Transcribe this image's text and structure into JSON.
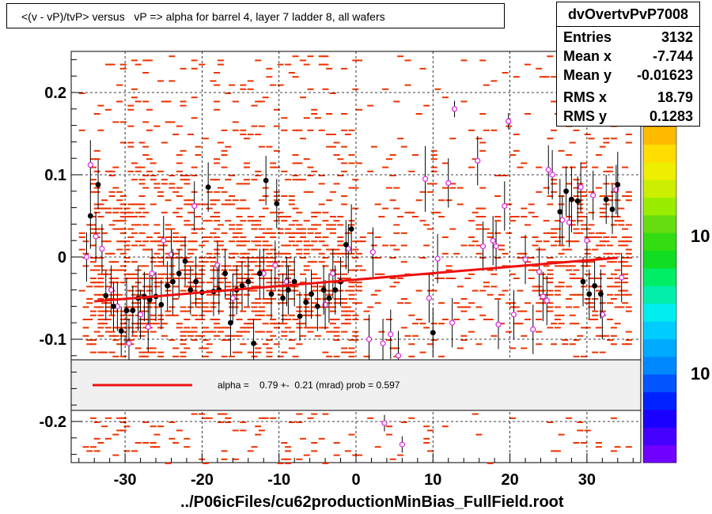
{
  "title": "<(v - vP)/tvP> versus   vP => alpha for barrel 4, layer 7 ladder 8, all wafers",
  "xlabel": "../P06icFiles/cu62productionMinBias_FullField.root",
  "stats": {
    "name": "dvOvertvPvP7008",
    "rows": [
      {
        "key": "Entries",
        "value": "3132"
      },
      {
        "key": "Mean x",
        "value": "-7.744"
      },
      {
        "key": "Mean y",
        "value": "-0.01623"
      },
      {
        "key": "RMS x",
        "value": "18.79"
      },
      {
        "key": "RMS y",
        "value": "0.1283"
      }
    ]
  },
  "fit_legend": "alpha =    0.79 +-  0.21 (mrad) prob = 0.597",
  "colors": {
    "fit_line": "#ee1111",
    "hist_cells": "#ee3300",
    "profile_points": "#000000",
    "open_points": "#dd22dd",
    "legend_bg": "#f0f0f0"
  },
  "chart_data": {
    "type": "scatter",
    "xlim": [
      -37,
      37
    ],
    "ylim": [
      -0.25,
      0.25
    ],
    "x_ticks": [
      -30,
      -20,
      -10,
      0,
      10,
      20,
      30
    ],
    "y_ticks": [
      -0.2,
      -0.1,
      0,
      0.1,
      0.2
    ],
    "x_tick_labels": [
      "-30",
      "-20",
      "-10",
      "0",
      "10",
      "20",
      "30"
    ],
    "y_tick_labels": [
      "-0.2",
      "-0.1",
      "0",
      "0.1",
      "0.2"
    ],
    "grid": true,
    "colorbar_labels": [
      "10",
      "10"
    ],
    "fit_line": {
      "x": [
        -34,
        34
      ],
      "y": [
        -0.054,
        -0.001
      ]
    },
    "profile": [
      {
        "x": -34.5,
        "y": 0.05,
        "err": 0.04
      },
      {
        "x": -33.5,
        "y": 0.088,
        "err": 0.03
      },
      {
        "x": -32.5,
        "y": -0.047,
        "err": 0.03
      },
      {
        "x": -31.5,
        "y": -0.06,
        "err": 0.03
      },
      {
        "x": -30.5,
        "y": -0.09,
        "err": 0.03
      },
      {
        "x": -29.8,
        "y": -0.065,
        "err": 0.04
      },
      {
        "x": -29,
        "y": -0.065,
        "err": 0.03
      },
      {
        "x": -28.3,
        "y": -0.05,
        "err": 0.04
      },
      {
        "x": -27.5,
        "y": -0.048,
        "err": 0.03
      },
      {
        "x": -26.8,
        "y": -0.052,
        "err": 0.03
      },
      {
        "x": -26,
        "y": -0.048,
        "err": 0.03
      },
      {
        "x": -25.3,
        "y": -0.058,
        "err": 0.03
      },
      {
        "x": -24.5,
        "y": -0.035,
        "err": 0.03
      },
      {
        "x": -23.8,
        "y": -0.03,
        "err": 0.04
      },
      {
        "x": -23,
        "y": -0.02,
        "err": 0.03
      },
      {
        "x": -22.2,
        "y": -0.005,
        "err": 0.03
      },
      {
        "x": -21.5,
        "y": -0.04,
        "err": 0.03
      },
      {
        "x": -20.8,
        "y": -0.03,
        "err": 0.03
      },
      {
        "x": -20,
        "y": -0.043,
        "err": 0.03
      },
      {
        "x": -19.2,
        "y": 0.085,
        "err": 0.03
      },
      {
        "x": -18.5,
        "y": -0.042,
        "err": 0.03
      },
      {
        "x": -17.8,
        "y": -0.04,
        "err": 0.03
      },
      {
        "x": -17,
        "y": -0.02,
        "err": 0.03
      },
      {
        "x": -16.3,
        "y": -0.08,
        "err": 0.04
      },
      {
        "x": -15.5,
        "y": -0.04,
        "err": 0.03
      },
      {
        "x": -14.8,
        "y": -0.035,
        "err": 0.03
      },
      {
        "x": -14,
        "y": -0.03,
        "err": 0.03
      },
      {
        "x": -13.3,
        "y": -0.105,
        "err": 0.03
      },
      {
        "x": -12.5,
        "y": -0.02,
        "err": 0.03
      },
      {
        "x": -11.7,
        "y": 0.093,
        "err": 0.03
      },
      {
        "x": -11,
        "y": -0.045,
        "err": 0.03
      },
      {
        "x": -10.3,
        "y": 0.065,
        "err": 0.03
      },
      {
        "x": -9.5,
        "y": -0.05,
        "err": 0.03
      },
      {
        "x": -8.8,
        "y": -0.04,
        "err": 0.03
      },
      {
        "x": -8,
        "y": -0.03,
        "err": 0.03
      },
      {
        "x": -7.3,
        "y": -0.072,
        "err": 0.03
      },
      {
        "x": -6.5,
        "y": -0.055,
        "err": 0.03
      },
      {
        "x": -5.8,
        "y": -0.045,
        "err": 0.03
      },
      {
        "x": -5,
        "y": -0.06,
        "err": 0.03
      },
      {
        "x": -4.2,
        "y": -0.04,
        "err": 0.03
      },
      {
        "x": -3.5,
        "y": -0.05,
        "err": 0.03
      },
      {
        "x": -2.7,
        "y": -0.04,
        "err": 0.03
      },
      {
        "x": -2,
        "y": -0.03,
        "err": 0.03
      },
      {
        "x": -1.3,
        "y": 0.015,
        "err": 0.03
      },
      {
        "x": -0.6,
        "y": 0.034,
        "err": 0.03
      },
      {
        "x": 10,
        "y": -0.092,
        "err": 0.03
      },
      {
        "x": 26.5,
        "y": 0.055,
        "err": 0.04
      },
      {
        "x": 27.3,
        "y": 0.08,
        "err": 0.03
      },
      {
        "x": 28,
        "y": 0.07,
        "err": 0.04
      },
      {
        "x": 28.8,
        "y": 0.068,
        "err": 0.03
      },
      {
        "x": 29.5,
        "y": -0.03,
        "err": 0.03
      },
      {
        "x": 30.3,
        "y": -0.045,
        "err": 0.03
      },
      {
        "x": 31,
        "y": -0.035,
        "err": 0.03
      },
      {
        "x": 31.8,
        "y": -0.045,
        "err": 0.03
      },
      {
        "x": 32.5,
        "y": 0.07,
        "err": 0.03
      },
      {
        "x": 33.3,
        "y": 0.058,
        "err": 0.03
      },
      {
        "x": 34,
        "y": 0.088,
        "err": 0.04
      }
    ],
    "open_points": [
      {
        "x": -35,
        "y": 0,
        "err": 0.03
      },
      {
        "x": -34.5,
        "y": 0.112,
        "err": 0.03
      },
      {
        "x": -33.8,
        "y": 0.025,
        "err": 0.03
      },
      {
        "x": -33,
        "y": 0.01,
        "err": 0.03
      },
      {
        "x": -31.8,
        "y": -0.04,
        "err": 0.03
      },
      {
        "x": -31,
        "y": -0.06,
        "err": 0.03
      },
      {
        "x": -29.5,
        "y": -0.105,
        "err": 0.03
      },
      {
        "x": -28,
        "y": -0.07,
        "err": 0.03
      },
      {
        "x": -27,
        "y": -0.085,
        "err": 0.03
      },
      {
        "x": -26.5,
        "y": -0.02,
        "err": 0.03
      },
      {
        "x": -25,
        "y": 0.02,
        "err": 0.03
      },
      {
        "x": -24,
        "y": 0.003,
        "err": 0.03
      },
      {
        "x": -21,
        "y": 0.062,
        "err": 0.03
      },
      {
        "x": -18,
        "y": -0.01,
        "err": 0.03
      },
      {
        "x": -16,
        "y": -0.05,
        "err": 0.03
      },
      {
        "x": -12,
        "y": -0.02,
        "err": 0.03
      },
      {
        "x": -10.5,
        "y": -0.01,
        "err": 0.03
      },
      {
        "x": -9,
        "y": -0.03,
        "err": 0.03
      },
      {
        "x": -4,
        "y": -0.058,
        "err": 0.03
      },
      {
        "x": -3,
        "y": -0.02,
        "err": 0.03
      },
      {
        "x": -1,
        "y": 0.01,
        "err": 0.03
      },
      {
        "x": 1.7,
        "y": -0.1,
        "err": 0.03
      },
      {
        "x": 2.2,
        "y": 0.006,
        "err": 0.03
      },
      {
        "x": 3.5,
        "y": -0.105,
        "err": 0.03
      },
      {
        "x": 4.5,
        "y": -0.094,
        "err": 0.03
      },
      {
        "x": 5.5,
        "y": -0.12,
        "err": 0.03
      },
      {
        "x": 3.7,
        "y": -0.202,
        "err": 0.01
      },
      {
        "x": 6,
        "y": -0.228,
        "err": 0.01
      },
      {
        "x": 9,
        "y": 0.095,
        "err": 0.04
      },
      {
        "x": 9.5,
        "y": -0.05,
        "err": 0.03
      },
      {
        "x": 10.6,
        "y": -0.002,
        "err": 0.03
      },
      {
        "x": 12,
        "y": 0.09,
        "err": 0.03
      },
      {
        "x": 12.5,
        "y": -0.08,
        "err": 0.03
      },
      {
        "x": 12.8,
        "y": 0.18,
        "err": 0.01
      },
      {
        "x": 15.8,
        "y": 0.117,
        "err": 0.03
      },
      {
        "x": 16.5,
        "y": 0.013,
        "err": 0.03
      },
      {
        "x": 17.8,
        "y": 0.02,
        "err": 0.03
      },
      {
        "x": 18.2,
        "y": 0.013,
        "err": 0.03
      },
      {
        "x": 18.5,
        "y": -0.082,
        "err": 0.03
      },
      {
        "x": 19.3,
        "y": 0.062,
        "err": 0.03
      },
      {
        "x": 19.8,
        "y": 0.165,
        "err": 0.01
      },
      {
        "x": 20.5,
        "y": -0.07,
        "err": 0.03
      },
      {
        "x": 22,
        "y": -0.003,
        "err": 0.03
      },
      {
        "x": 23,
        "y": -0.088,
        "err": 0.03
      },
      {
        "x": 23.8,
        "y": -0.018,
        "err": 0.03
      },
      {
        "x": 24.3,
        "y": -0.048,
        "err": 0.03
      },
      {
        "x": 24.8,
        "y": -0.053,
        "err": 0.03
      },
      {
        "x": 25,
        "y": 0.106,
        "err": 0.03
      },
      {
        "x": 25.5,
        "y": 0.1,
        "err": 0.03
      },
      {
        "x": 26.8,
        "y": 0.045,
        "err": 0.03
      },
      {
        "x": 27.7,
        "y": 0.042,
        "err": 0.03
      },
      {
        "x": 29.2,
        "y": 0.085,
        "err": 0.03
      },
      {
        "x": 30,
        "y": 0.02,
        "err": 0.03
      },
      {
        "x": 30.8,
        "y": 0.075,
        "err": 0.03
      },
      {
        "x": 32,
        "y": -0.07,
        "err": 0.03
      },
      {
        "x": 33.8,
        "y": 0.082,
        "err": 0.03
      },
      {
        "x": 34.5,
        "y": -0.025,
        "err": 0.03
      }
    ]
  }
}
